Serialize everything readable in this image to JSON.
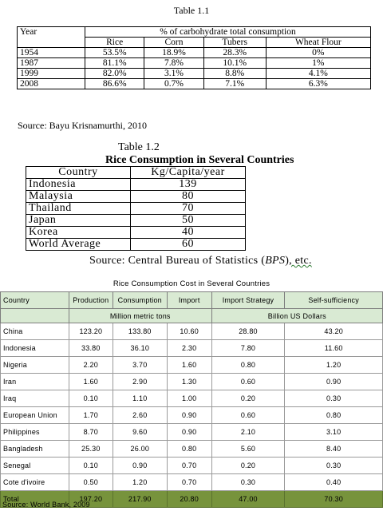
{
  "table_1_1": {
    "title": "Table 1.1",
    "year_label": "Year",
    "group_header": "% of carbohydrate total consumption",
    "columns": [
      "Rice",
      "Corn",
      "Tubers",
      "Wheat Flour"
    ],
    "rows": [
      {
        "year": "1954",
        "values": [
          "53.5%",
          "18.9%",
          "28.3%",
          "0%"
        ]
      },
      {
        "year": "1987",
        "values": [
          "81.1%",
          "7.8%",
          "10.1%",
          "1%"
        ]
      },
      {
        "year": "1999",
        "values": [
          "82.0%",
          "3.1%",
          "8.8%",
          "4.1%"
        ]
      },
      {
        "year": "2008",
        "values": [
          "86.6%",
          "0.7%",
          "7.1%",
          "6.3%"
        ]
      }
    ],
    "source": "Source: Bayu Krisnamurthi, 2010"
  },
  "table_1_2": {
    "title": "Table 1.2",
    "subtitle": "Rice Consumption in Several Countries",
    "headers": [
      "Country",
      "Kg/Capita/year"
    ],
    "rows": [
      {
        "country": "Indonesia",
        "value": "139"
      },
      {
        "country": "Malaysia",
        "value": "80"
      },
      {
        "country": "Thailand",
        "value": "70"
      },
      {
        "country": "Japan",
        "value": "50"
      },
      {
        "country": "Korea",
        "value": "40"
      },
      {
        "country": "World Average",
        "value": "60"
      }
    ],
    "source_prefix": "Source: Central Bureau of Statistics (",
    "source_bps": "BPS",
    "source_paren": ")",
    "source_etc": ",  etc."
  },
  "table_3": {
    "title": "Rice Consumption Cost in Several Countries",
    "headers": [
      "Country",
      "Production",
      "Consumption",
      "Import",
      "Import Strategy",
      "Self-sufficiency"
    ],
    "unit_volume": "Million metric tons",
    "unit_value": "Billion US Dollars",
    "rows": [
      {
        "country": "China",
        "values": [
          "123.20",
          "133.80",
          "10.60",
          "28.80",
          "43.20"
        ]
      },
      {
        "country": "Indonesia",
        "values": [
          "33.80",
          "36.10",
          "2.30",
          "7.80",
          "11.60"
        ]
      },
      {
        "country": "Nigeria",
        "values": [
          "2.20",
          "3.70",
          "1.60",
          "0.80",
          "1.20"
        ]
      },
      {
        "country": "Iran",
        "values": [
          "1.60",
          "2.90",
          "1.30",
          "0.60",
          "0.90"
        ]
      },
      {
        "country": "Iraq",
        "values": [
          "0.10",
          "1.10",
          "1.00",
          "0.20",
          "0.30"
        ]
      },
      {
        "country": "European Union",
        "values": [
          "1.70",
          "2.60",
          "0.90",
          "0.60",
          "0.80"
        ]
      },
      {
        "country": "Philippines",
        "values": [
          "8.70",
          "9.60",
          "0.90",
          "2.10",
          "3.10"
        ]
      },
      {
        "country": "Bangladesh",
        "values": [
          "25.30",
          "26.00",
          "0.80",
          "5.60",
          "8.40"
        ]
      },
      {
        "country": "Senegal",
        "values": [
          "0.10",
          "0.90",
          "0.70",
          "0.20",
          "0.30"
        ]
      },
      {
        "country": "Cote d'ivoire",
        "values": [
          "0.50",
          "1.20",
          "0.70",
          "0.30",
          "0.40"
        ]
      }
    ],
    "total": {
      "label": "Total",
      "values": [
        "197.20",
        "217.90",
        "20.80",
        "47.00",
        "70.30"
      ]
    },
    "source": "Source: World Bank, 2009",
    "header_color": "#d9ead3",
    "total_color": "#77933c"
  }
}
